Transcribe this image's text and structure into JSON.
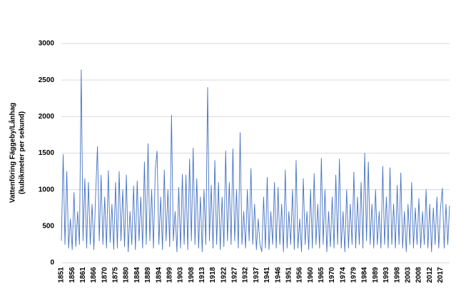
{
  "chart_data": {
    "type": "line",
    "ylabel": [
      "Vattenföring Fäggeby/Lånhag",
      "(kubikmeter per sekund)"
    ],
    "color": "#4472c4",
    "grid": true,
    "ylim": [
      0,
      3000
    ],
    "yticks": [
      0,
      500,
      1000,
      1500,
      2000,
      2500,
      3000
    ],
    "categories": [
      "1851",
      null,
      null,
      null,
      null,
      null,
      "1856",
      null,
      null,
      null,
      null,
      null,
      "1861",
      null,
      null,
      null,
      null,
      null,
      "1866",
      null,
      null,
      null,
      null,
      null,
      "1870",
      null,
      null,
      null,
      null,
      null,
      "1875",
      null,
      null,
      null,
      null,
      null,
      "1880",
      null,
      null,
      null,
      null,
      null,
      "1884",
      null,
      null,
      null,
      null,
      null,
      "1889",
      null,
      null,
      null,
      null,
      null,
      "1894",
      null,
      null,
      null,
      null,
      null,
      "1899",
      null,
      null,
      null,
      null,
      null,
      "1903",
      null,
      null,
      null,
      null,
      null,
      "1908",
      null,
      null,
      null,
      null,
      null,
      "1913",
      null,
      null,
      null,
      null,
      null,
      "1918",
      null,
      null,
      null,
      null,
      null,
      "1922",
      null,
      null,
      null,
      null,
      null,
      "1927",
      null,
      null,
      null,
      null,
      null,
      "1932",
      null,
      null,
      null,
      null,
      null,
      "1937",
      null,
      null,
      null,
      null,
      null,
      "1941",
      null,
      null,
      null,
      null,
      null,
      "1946",
      null,
      null,
      null,
      null,
      null,
      "1951",
      null,
      null,
      null,
      null,
      null,
      "1956",
      null,
      null,
      null,
      null,
      null,
      "1960",
      null,
      null,
      null,
      null,
      null,
      "1965",
      null,
      null,
      null,
      null,
      null,
      "1970",
      null,
      null,
      null,
      null,
      null,
      "1974",
      null,
      null,
      null,
      null,
      null,
      "1979",
      null,
      null,
      null,
      null,
      null,
      "1984",
      null,
      null,
      null,
      null,
      null,
      "1989",
      null,
      null,
      null,
      null,
      null,
      "1993",
      null,
      null,
      null,
      null,
      null,
      "1998",
      null,
      null,
      null,
      null,
      null,
      "2003",
      null,
      null,
      null,
      null,
      null,
      "2008",
      null,
      null,
      null,
      null,
      null,
      "2012",
      null,
      null,
      null,
      null,
      null,
      "2017",
      null,
      null,
      null,
      null,
      null
    ],
    "values": [
      300,
      1480,
      250,
      1250,
      200,
      600,
      180,
      960,
      220,
      700,
      250,
      2640,
      300,
      1150,
      200,
      1100,
      250,
      800,
      180,
      950,
      1590,
      300,
      1200,
      250,
      900,
      200,
      1260,
      280,
      800,
      180,
      1100,
      200,
      1250,
      300,
      1000,
      220,
      1200,
      150,
      700,
      250,
      1050,
      180,
      1120,
      300,
      900,
      200,
      1380,
      250,
      1630,
      300,
      1000,
      200,
      1270,
      1530,
      250,
      900,
      180,
      1270,
      300,
      1000,
      220,
      2020,
      300,
      700,
      150,
      1030,
      200,
      1210,
      250,
      1200,
      180,
      1420,
      300,
      1570,
      250,
      1150,
      200,
      900,
      150,
      1000,
      250,
      2400,
      300,
      1060,
      200,
      1400,
      250,
      1100,
      180,
      900,
      220,
      1530,
      300,
      1100,
      250,
      1560,
      300,
      1000,
      200,
      1780,
      250,
      700,
      200,
      1000,
      300,
      1290,
      250,
      800,
      180,
      600,
      250,
      150,
      900,
      200,
      1170,
      180,
      700,
      250,
      1100,
      200,
      1030,
      250,
      800,
      150,
      1270,
      200,
      700,
      250,
      1000,
      180,
      1400,
      200,
      600,
      150,
      1150,
      250,
      700,
      180,
      1000,
      200,
      1220,
      250,
      800,
      200,
      1430,
      250,
      1000,
      150,
      700,
      220,
      900,
      200,
      1200,
      250,
      1420,
      200,
      700,
      150,
      1000,
      200,
      800,
      250,
      1240,
      200,
      900,
      250,
      1100,
      200,
      1500,
      300,
      1380,
      250,
      800,
      200,
      1000,
      250,
      700,
      200,
      1320,
      250,
      900,
      200,
      1300,
      250,
      800,
      200,
      1060,
      250,
      1230,
      200,
      700,
      150,
      800,
      250,
      1100,
      200,
      750,
      250,
      880,
      200,
      700,
      250,
      1000,
      200,
      800,
      150,
      750,
      250,
      900,
      200,
      750,
      1020,
      200,
      800,
      250,
      780
    ]
  }
}
